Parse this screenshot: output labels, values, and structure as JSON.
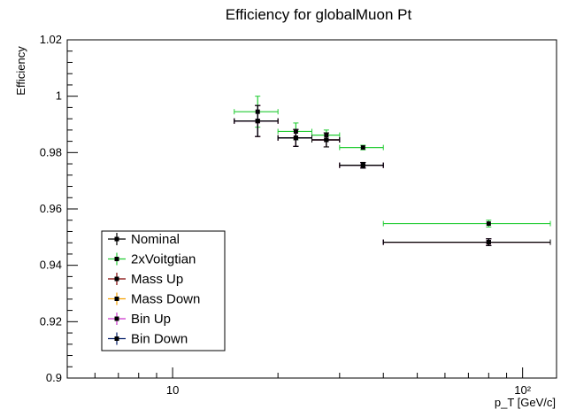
{
  "chart_data": {
    "type": "scatter",
    "title": "Efficiency for globalMuon Pt",
    "xlabel": "p_T [GeV/c]",
    "ylabel": "Efficiency",
    "xscale": "log",
    "xlim": [
      5,
      125
    ],
    "ylim": [
      0.9,
      1.02
    ],
    "yticks": [
      "0.9",
      "0.92",
      "0.94",
      "0.96",
      "0.98",
      "1",
      "1.02"
    ],
    "xticks": [
      10,
      100
    ],
    "xtick_labels": [
      "10",
      "10²"
    ],
    "legend_position": "bottom-left",
    "series": [
      {
        "name": "Nominal",
        "color": "#000000",
        "points": [
          {
            "x": 17.5,
            "xlo": 15,
            "xhi": 20,
            "y": 0.9912,
            "err": 0.0055
          },
          {
            "x": 22.5,
            "xlo": 20,
            "xhi": 25,
            "y": 0.9852,
            "err": 0.003
          },
          {
            "x": 27.5,
            "xlo": 25,
            "xhi": 30,
            "y": 0.9845,
            "err": 0.0025
          },
          {
            "x": 35,
            "xlo": 30,
            "xhi": 40,
            "y": 0.9755,
            "err": 0.001
          },
          {
            "x": 80,
            "xlo": 40,
            "xhi": 120,
            "y": 0.9482,
            "err": 0.0012
          }
        ]
      },
      {
        "name": "2xVoitgtian",
        "color": "#22cc33",
        "points": [
          {
            "x": 17.5,
            "xlo": 15,
            "xhi": 20,
            "y": 0.9945,
            "err": 0.0055
          },
          {
            "x": 22.5,
            "xlo": 20,
            "xhi": 25,
            "y": 0.9875,
            "err": 0.003
          },
          {
            "x": 27.5,
            "xlo": 25,
            "xhi": 30,
            "y": 0.9862,
            "err": 0.0018
          },
          {
            "x": 35,
            "xlo": 30,
            "xhi": 40,
            "y": 0.9818,
            "err": 0.0008
          },
          {
            "x": 80,
            "xlo": 40,
            "xhi": 120,
            "y": 0.9548,
            "err": 0.0012
          }
        ]
      },
      {
        "name": "Mass Up",
        "color": "#800000",
        "points": [
          {
            "x": 17.5,
            "xlo": 15,
            "xhi": 20,
            "y": 0.9912,
            "err": 0.0055
          },
          {
            "x": 22.5,
            "xlo": 20,
            "xhi": 25,
            "y": 0.9852,
            "err": 0.003
          },
          {
            "x": 27.5,
            "xlo": 25,
            "xhi": 30,
            "y": 0.9845,
            "err": 0.0025
          },
          {
            "x": 35,
            "xlo": 30,
            "xhi": 40,
            "y": 0.9755,
            "err": 0.001
          },
          {
            "x": 80,
            "xlo": 40,
            "xhi": 120,
            "y": 0.9482,
            "err": 0.0012
          }
        ]
      },
      {
        "name": "Mass Down",
        "color": "#f5a000",
        "points": [
          {
            "x": 17.5,
            "xlo": 15,
            "xhi": 20,
            "y": 0.9912,
            "err": 0.0055
          },
          {
            "x": 22.5,
            "xlo": 20,
            "xhi": 25,
            "y": 0.9852,
            "err": 0.003
          },
          {
            "x": 27.5,
            "xlo": 25,
            "xhi": 30,
            "y": 0.9845,
            "err": 0.0025
          },
          {
            "x": 35,
            "xlo": 30,
            "xhi": 40,
            "y": 0.9755,
            "err": 0.001
          },
          {
            "x": 80,
            "xlo": 40,
            "xhi": 120,
            "y": 0.9482,
            "err": 0.0012
          }
        ]
      },
      {
        "name": "Bin Up",
        "color": "#cc33cc",
        "points": [
          {
            "x": 17.5,
            "xlo": 15,
            "xhi": 20,
            "y": 0.9912,
            "err": 0.0055
          },
          {
            "x": 22.5,
            "xlo": 20,
            "xhi": 25,
            "y": 0.9852,
            "err": 0.003
          },
          {
            "x": 27.5,
            "xlo": 25,
            "xhi": 30,
            "y": 0.9845,
            "err": 0.0025
          },
          {
            "x": 35,
            "xlo": 30,
            "xhi": 40,
            "y": 0.9755,
            "err": 0.001
          },
          {
            "x": 80,
            "xlo": 40,
            "xhi": 120,
            "y": 0.9482,
            "err": 0.0012
          }
        ]
      },
      {
        "name": "Bin Down",
        "color": "#001a66",
        "points": [
          {
            "x": 17.5,
            "xlo": 15,
            "xhi": 20,
            "y": 0.9912,
            "err": 0.0055
          },
          {
            "x": 22.5,
            "xlo": 20,
            "xhi": 25,
            "y": 0.9852,
            "err": 0.003
          },
          {
            "x": 27.5,
            "xlo": 25,
            "xhi": 30,
            "y": 0.9845,
            "err": 0.0025
          },
          {
            "x": 35,
            "xlo": 30,
            "xhi": 40,
            "y": 0.9755,
            "err": 0.001
          },
          {
            "x": 80,
            "xlo": 40,
            "xhi": 120,
            "y": 0.9482,
            "err": 0.0012
          }
        ]
      }
    ]
  }
}
